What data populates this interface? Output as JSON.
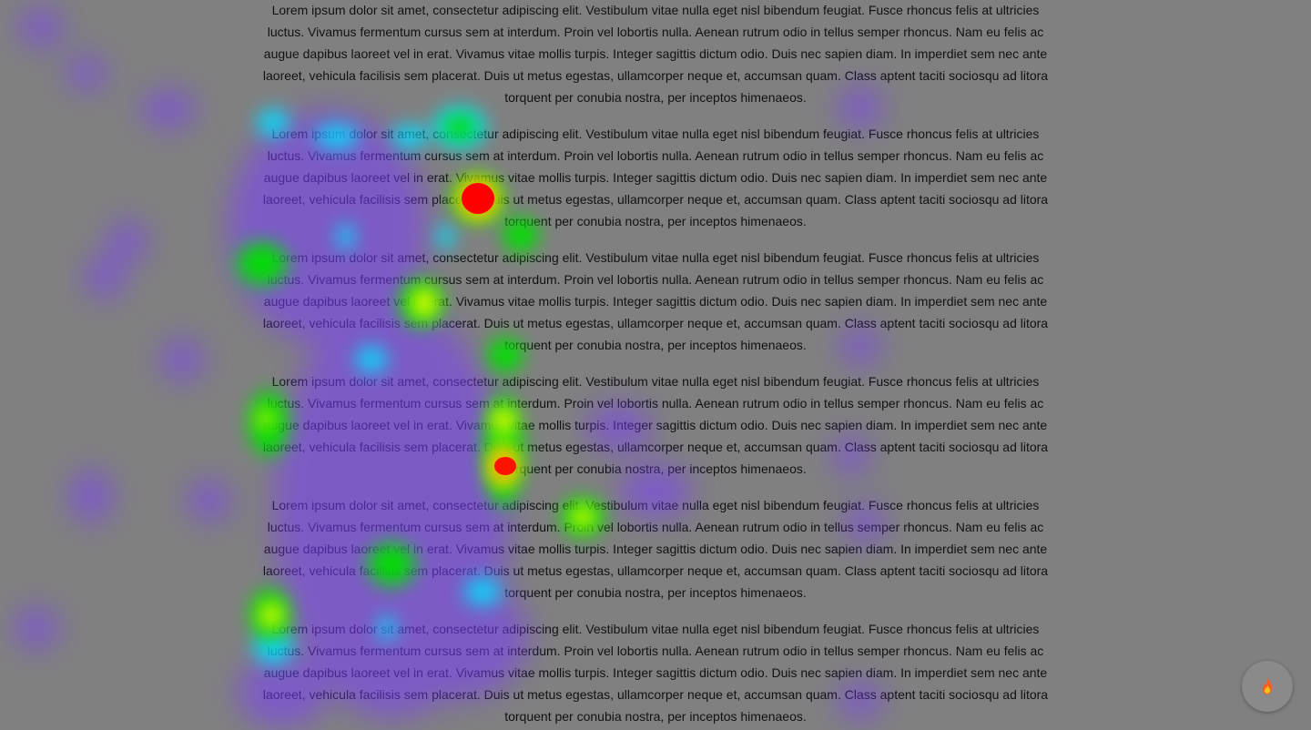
{
  "paragraphs": [
    "Lorem ipsum dolor sit amet, consectetur adipiscing elit. Vestibulum vitae nulla eget nisl bibendum feugiat. Fusce rhoncus felis at ultricies luctus. Vivamus fermentum cursus sem at interdum. Proin vel lobortis nulla. Aenean rutrum odio in tellus semper rhoncus. Nam eu felis ac augue dapibus laoreet vel in erat. Vivamus vitae mollis turpis. Integer sagittis dictum odio. Duis nec sapien diam. In imperdiet sem nec ante laoreet, vehicula facilisis sem placerat. Duis ut metus egestas, ullamcorper neque et, accumsan quam. Class aptent taciti sociosqu ad litora torquent per conubia nostra, per inceptos himenaeos.",
    "Lorem ipsum dolor sit amet, consectetur adipiscing elit. Vestibulum vitae nulla eget nisl bibendum feugiat. Fusce rhoncus felis at ultricies luctus. Vivamus fermentum cursus sem at interdum. Proin vel lobortis nulla. Aenean rutrum odio in tellus semper rhoncus. Nam eu felis ac augue dapibus laoreet vel in erat. Vivamus vitae mollis turpis. Integer sagittis dictum odio. Duis nec sapien diam. In imperdiet sem nec ante laoreet, vehicula facilisis sem placerat. Duis ut metus egestas, ullamcorper neque et, accumsan quam. Class aptent taciti sociosqu ad litora torquent per conubia nostra, per inceptos himenaeos.",
    "Lorem ipsum dolor sit amet, consectetur adipiscing elit. Vestibulum vitae nulla eget nisl bibendum feugiat. Fusce rhoncus felis at ultricies luctus. Vivamus fermentum cursus sem at interdum. Proin vel lobortis nulla. Aenean rutrum odio in tellus semper rhoncus. Nam eu felis ac augue dapibus laoreet vel in erat. Vivamus vitae mollis turpis. Integer sagittis dictum odio. Duis nec sapien diam. In imperdiet sem nec ante laoreet, vehicula facilisis sem placerat. Duis ut metus egestas, ullamcorper neque et, accumsan quam. Class aptent taciti sociosqu ad litora torquent per conubia nostra, per inceptos himenaeos.",
    "Lorem ipsum dolor sit amet, consectetur adipiscing elit. Vestibulum vitae nulla eget nisl bibendum feugiat. Fusce rhoncus felis at ultricies luctus. Vivamus fermentum cursus sem at interdum. Proin vel lobortis nulla. Aenean rutrum odio in tellus semper rhoncus. Nam eu felis ac augue dapibus laoreet vel in erat. Vivamus vitae mollis turpis. Integer sagittis dictum odio. Duis nec sapien diam. In imperdiet sem nec ante laoreet, vehicula facilisis sem placerat. Duis ut metus egestas, ullamcorper neque et, accumsan quam. Class aptent taciti sociosqu ad litora torquent per conubia nostra, per inceptos himenaeos.",
    "Lorem ipsum dolor sit amet, consectetur adipiscing elit. Vestibulum vitae nulla eget nisl bibendum feugiat. Fusce rhoncus felis at ultricies luctus. Vivamus fermentum cursus sem at interdum. Proin vel lobortis nulla. Aenean rutrum odio in tellus semper rhoncus. Nam eu felis ac augue dapibus laoreet vel in erat. Vivamus vitae mollis turpis. Integer sagittis dictum odio. Duis nec sapien diam. In imperdiet sem nec ante laoreet, vehicula facilisis sem placerat. Duis ut metus egestas, ullamcorper neque et, accumsan quam. Class aptent taciti sociosqu ad litora torquent per conubia nostra, per inceptos himenaeos.",
    "Lorem ipsum dolor sit amet, consectetur adipiscing elit. Vestibulum vitae nulla eget nisl bibendum feugiat. Fusce rhoncus felis at ultricies luctus. Vivamus fermentum cursus sem at interdum. Proin vel lobortis nulla. Aenean rutrum odio in tellus semper rhoncus. Nam eu felis ac augue dapibus laoreet vel in erat. Vivamus vitae mollis turpis. Integer sagittis dictum odio. Duis nec sapien diam. In imperdiet sem nec ante laoreet, vehicula facilisis sem placerat. Duis ut metus egestas, ullamcorper neque et, accumsan quam. Class aptent taciti sociosqu ad litora torquent per conubia nostra, per inceptos himenaeos."
  ],
  "heatmap": {
    "overlay_color": "#808080",
    "palette": [
      "#7a3cff",
      "#00e0ff",
      "#00e000",
      "#ffff00",
      "#ff0000"
    ]
  },
  "toggle_button": {
    "icon": "flame-icon"
  }
}
